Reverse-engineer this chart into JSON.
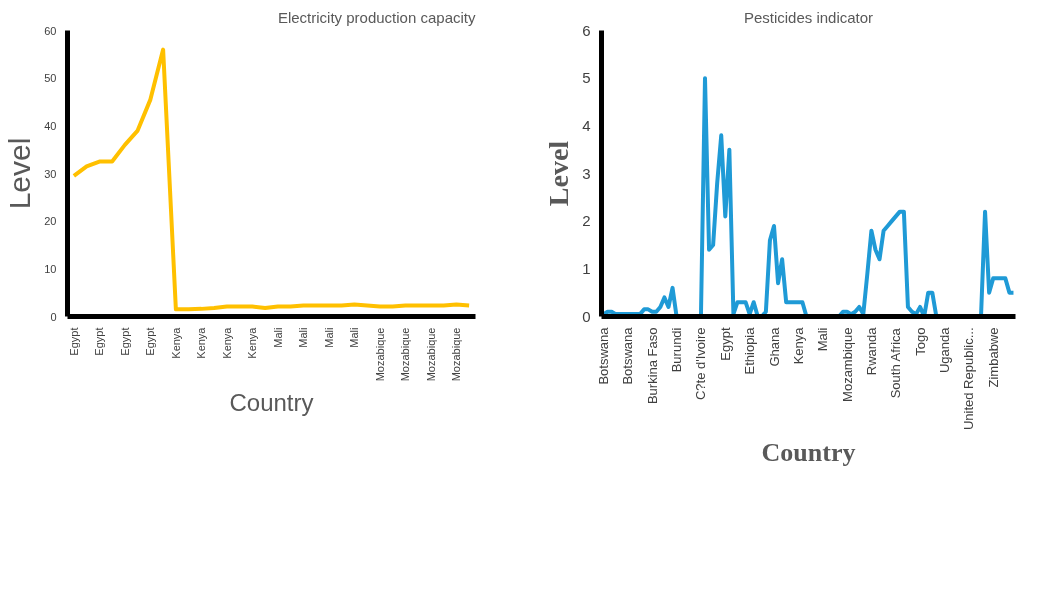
{
  "chart_data": [
    {
      "type": "line",
      "title": "Electricity production capacity",
      "xlabel": "Country",
      "ylabel": "Level",
      "color": "#ffc000",
      "ylim": [
        0,
        60
      ],
      "yticks": [
        0,
        10,
        20,
        30,
        40,
        50,
        60
      ],
      "categories": [
        "Egypt",
        null,
        "Egypt",
        null,
        "Egypt",
        null,
        "Egypt",
        null,
        "Kenya",
        null,
        "Kenya",
        null,
        "Kenya",
        null,
        "Kenya",
        null,
        "Mali",
        null,
        "Mali",
        null,
        "Mali",
        null,
        "Mali",
        null,
        "Mozabique",
        null,
        "Mozabique",
        null,
        "Mozabique",
        null,
        "Mozabique",
        null
      ],
      "values": [
        29.5,
        31.5,
        32.5,
        32.5,
        36,
        39,
        45.5,
        56,
        1.5,
        1.5,
        1.6,
        1.8,
        2.1,
        2.1,
        2.1,
        1.8,
        2.1,
        2.1,
        2.3,
        2.3,
        2.3,
        2.3,
        2.5,
        2.3,
        2.1,
        2.1,
        2.3,
        2.3,
        2.3,
        2.3,
        2.5,
        2.3
      ]
    },
    {
      "type": "line",
      "title": "Pesticides indicator",
      "xlabel": "Country",
      "ylabel": "Level",
      "color": "#1f9ad6",
      "ylim": [
        0,
        6
      ],
      "yticks": [
        0,
        1,
        2,
        3,
        4,
        5,
        6
      ],
      "categories": [
        "Botswana",
        null,
        null,
        null,
        null,
        null,
        "Botswana",
        null,
        null,
        null,
        null,
        null,
        "Burkina Faso",
        null,
        null,
        null,
        null,
        null,
        "Burundi",
        null,
        null,
        null,
        null,
        null,
        "C?te d'Ivoire",
        null,
        null,
        null,
        null,
        null,
        "Egypt",
        null,
        null,
        null,
        null,
        null,
        "Ethiopia",
        null,
        null,
        null,
        null,
        null,
        "Ghana",
        null,
        null,
        null,
        null,
        null,
        "Kenya",
        null,
        null,
        null,
        null,
        null,
        "Mali",
        null,
        null,
        null,
        null,
        null,
        "Mozambique",
        null,
        null,
        null,
        null,
        null,
        "Rwanda",
        null,
        null,
        null,
        null,
        null,
        "South Africa",
        null,
        null,
        null,
        null,
        null,
        "Togo",
        null,
        null,
        null,
        null,
        null,
        "Uganda",
        null,
        null,
        null,
        null,
        null,
        "United Republic...",
        null,
        null,
        null,
        null,
        null,
        "Zimbabwe",
        null,
        null,
        null,
        null,
        null
      ],
      "values": [
        0.05,
        0.1,
        0.1,
        0.05,
        0.05,
        0.05,
        0.05,
        0.05,
        0.05,
        0.05,
        0.15,
        0.15,
        0.1,
        0.1,
        0.2,
        0.4,
        0.2,
        0.6,
        0,
        0,
        0,
        0,
        0,
        0,
        0,
        5,
        1.4,
        1.5,
        2.8,
        3.8,
        2.1,
        3.5,
        0.05,
        0.3,
        0.3,
        0.3,
        0.05,
        0.3,
        0,
        0,
        0.1,
        1.6,
        1.9,
        0.7,
        1.2,
        0.3,
        0.3,
        0.3,
        0.3,
        0.3,
        0,
        0,
        0,
        0,
        0,
        0,
        0,
        0,
        0,
        0.1,
        0.1,
        0.05,
        0.1,
        0.2,
        0.05,
        0.9,
        1.8,
        1.4,
        1.2,
        1.8,
        1.9,
        2.0,
        2.1,
        2.2,
        2.2,
        0.2,
        0.1,
        0.05,
        0.2,
        0,
        0.5,
        0.5,
        0,
        0,
        0,
        0,
        0,
        0,
        0,
        0,
        0,
        0,
        0,
        0,
        2.2,
        0.5,
        0.8,
        0.8,
        0.8,
        0.8,
        0.5,
        0.5
      ]
    }
  ]
}
